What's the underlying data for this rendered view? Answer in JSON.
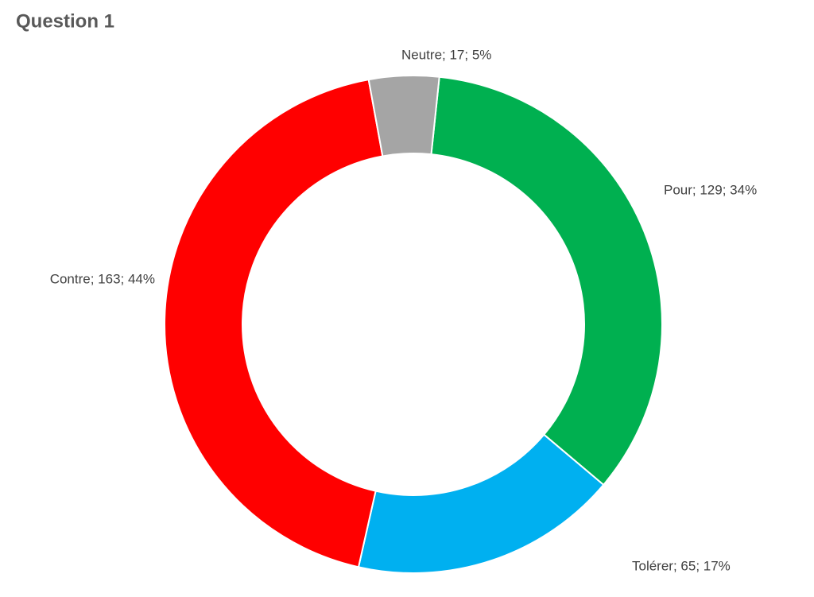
{
  "chart_data": {
    "type": "donut",
    "title": "Question 1",
    "categories": [
      "Pour",
      "Tolérer",
      "Contre",
      "Neutre"
    ],
    "values": [
      129,
      65,
      163,
      17
    ],
    "value_labels": [
      "Pour; 129; 34%",
      "Tolérer; 65; 17%",
      "Contre; 163; 44%",
      "Neutre; 17; 5%"
    ],
    "colors": [
      "#00b050",
      "#00b0f0",
      "#ff0000",
      "#a5a5a5"
    ]
  }
}
